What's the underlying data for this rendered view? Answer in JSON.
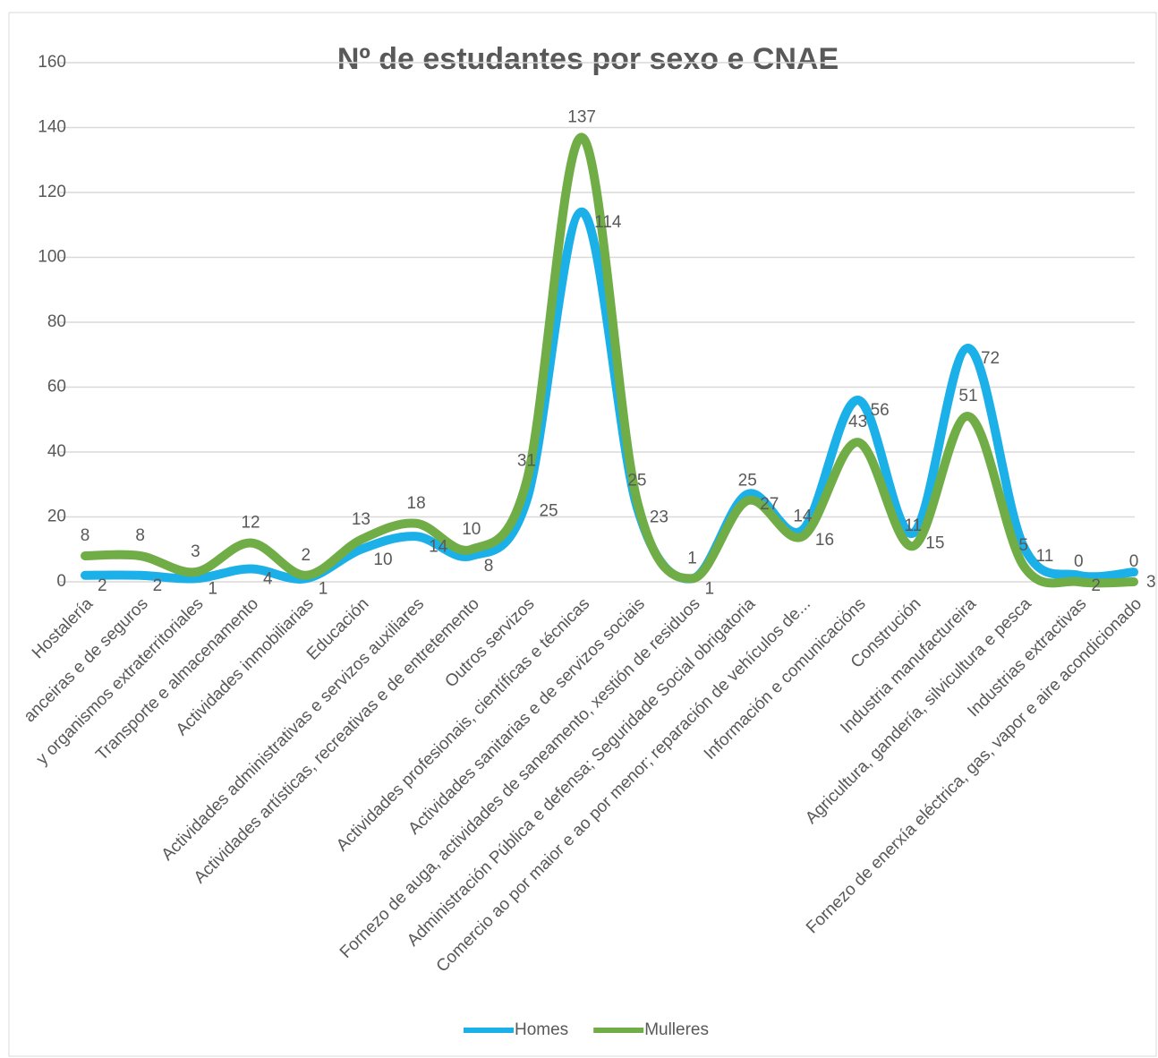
{
  "chart_data": {
    "type": "line",
    "title": "Nº de estudantes por sexo e CNAE",
    "categories": [
      "Hostalería",
      "anceiras e de seguros",
      "y organismos extraterritoriales",
      "Transporte e almacenamento",
      "Actividades inmobiliarias",
      "Educación",
      "Actividades administrativas e servizos auxiliares",
      "Actividades artísticas, recreativas e de entretemento",
      "Outros servizos",
      "Actividades profesionais, científicas e técnicas",
      "Actividades sanitarias e de servizos sociais",
      "Fornezo de auga, actividades de saneamento, xestión de residuos",
      "Administración Pública e defensa; Seguridade Social obrigatoria",
      "Comercio ao por maior e ao por menor; reparación de vehículos de...",
      "Información e comunicacións",
      "Construción",
      "Industria manufactureira",
      "Agricultura, gandería, silvicultura e pesca",
      "Industrias extractivas",
      "Fornezo de enerxía eléctrica, gas, vapor e aire acondicionado"
    ],
    "series": [
      {
        "name": "Homes",
        "color": "#1cb0e8",
        "values": [
          2,
          2,
          1,
          4,
          1,
          10,
          14,
          8,
          25,
          114,
          23,
          1,
          27,
          16,
          56,
          15,
          72,
          11,
          2,
          3
        ]
      },
      {
        "name": "Mulleres",
        "color": "#70ad47",
        "values": [
          8,
          8,
          3,
          12,
          2,
          13,
          18,
          10,
          31,
          137,
          25,
          1,
          25,
          14,
          43,
          11,
          51,
          5,
          0,
          0
        ]
      }
    ],
    "ylim": [
      0,
      160
    ],
    "yticks": [
      0,
      20,
      40,
      60,
      80,
      100,
      120,
      140,
      160
    ],
    "grid": true,
    "smooth": true,
    "legend": "bottom"
  }
}
